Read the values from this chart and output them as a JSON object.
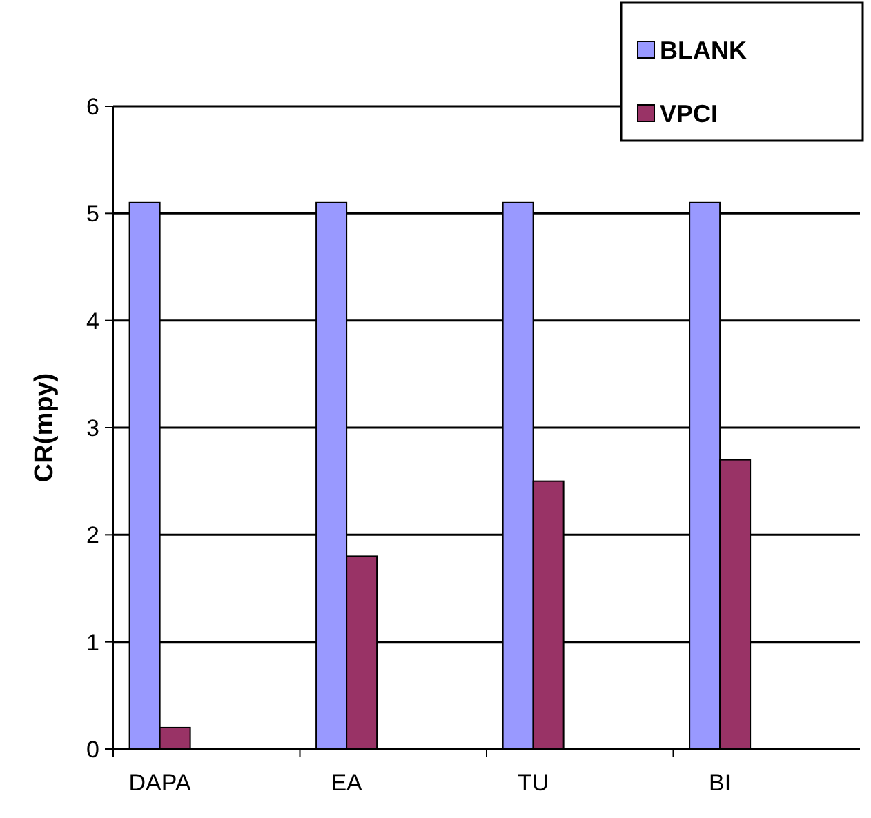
{
  "chart_data": {
    "type": "bar",
    "ylabel": "CR(mpy)",
    "categories": [
      "DAPA",
      "EA",
      "TU",
      "BI"
    ],
    "series": [
      {
        "name": "BLANK",
        "color": "#9999ff",
        "values": [
          5.1,
          5.1,
          5.1,
          5.1
        ]
      },
      {
        "name": "VPCI",
        "color": "#993366",
        "values": [
          0.2,
          1.8,
          2.5,
          2.7
        ]
      }
    ],
    "ylim": [
      0,
      6
    ],
    "yticks": [
      0,
      1,
      2,
      3,
      4,
      5,
      6
    ],
    "grid": "y",
    "legend": "top right"
  }
}
